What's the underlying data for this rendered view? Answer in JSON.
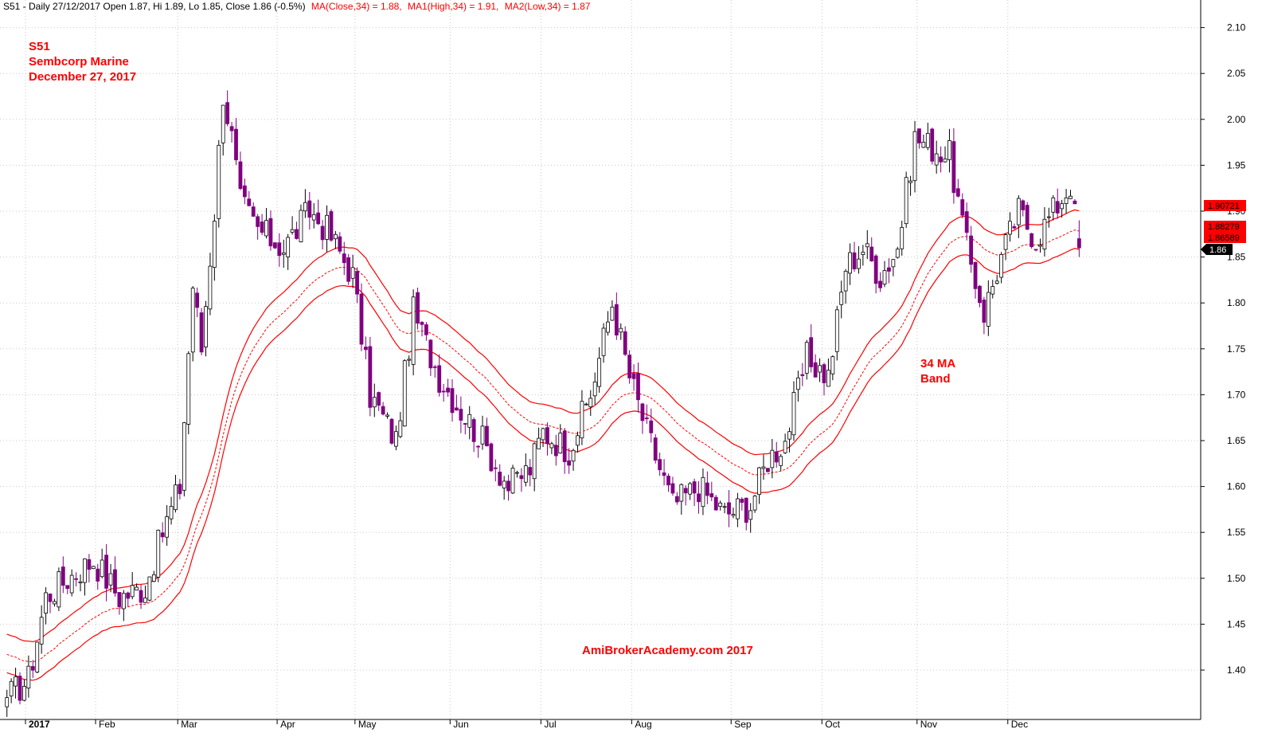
{
  "header": {
    "symbol_line": "S51 - Daily 27/12/2017 Open 1.87, Hi 1.89, Lo 1.85, Close 1.86 (-0.5%)",
    "ma_label": "MA(Close,34) = 1.88,",
    "ma1_label": "MA1(High,34) = 1.91,",
    "ma2_label": "MA2(Low,34) = 1.87"
  },
  "annotations": {
    "ticker": "S51",
    "company": "Sembcorp Marine",
    "date": "December 27, 2017",
    "band_line1": "34 MA",
    "band_line2": "Band",
    "watermark": "AmiBrokerAcademy.com   2017"
  },
  "price_badges": {
    "ma_high": "1.90721",
    "ma_close": "1.88279",
    "ma_low": "1.86589",
    "last_close": "1.86"
  },
  "colors": {
    "up_candle": "#ffffff",
    "down_candle": "#800080",
    "ma_line": "#ff0000",
    "annotation": "#ff0000",
    "badge_bg": "#ff0000",
    "last_badge_bg": "#000000"
  },
  "chart_data": {
    "type": "candlestick",
    "ylim": [
      1.35,
      2.12
    ],
    "y_ticks": [
      "1.40",
      "1.45",
      "1.50",
      "1.55",
      "1.60",
      "1.65",
      "1.70",
      "1.75",
      "1.80",
      "1.85",
      "1.90",
      "1.95",
      "2.00",
      "2.05",
      "2.10"
    ],
    "x_ticks": [
      "2017",
      "Feb",
      "Mar",
      "Apr",
      "May",
      "Jun",
      "Jul",
      "Aug",
      "Sep",
      "Oct",
      "Nov",
      "Dec"
    ],
    "month_bar_index": [
      0,
      21,
      40,
      63,
      81,
      103,
      124,
      145,
      168,
      189,
      211,
      232
    ],
    "bars": 249,
    "anchors": [
      [
        0,
        1.37
      ],
      [
        5,
        1.39
      ],
      [
        9,
        1.48
      ],
      [
        14,
        1.5
      ],
      [
        20,
        1.52
      ],
      [
        26,
        1.48
      ],
      [
        32,
        1.49
      ],
      [
        36,
        1.55
      ],
      [
        40,
        1.6
      ],
      [
        43,
        1.82
      ],
      [
        45,
        1.75
      ],
      [
        48,
        1.9
      ],
      [
        50,
        2.03
      ],
      [
        52,
        1.98
      ],
      [
        54,
        1.91
      ],
      [
        58,
        1.88
      ],
      [
        64,
        1.86
      ],
      [
        70,
        1.9
      ],
      [
        74,
        1.88
      ],
      [
        80,
        1.83
      ],
      [
        84,
        1.7
      ],
      [
        90,
        1.65
      ],
      [
        94,
        1.79
      ],
      [
        100,
        1.72
      ],
      [
        104,
        1.69
      ],
      [
        110,
        1.65
      ],
      [
        116,
        1.6
      ],
      [
        121,
        1.62
      ],
      [
        124,
        1.66
      ],
      [
        130,
        1.64
      ],
      [
        135,
        1.7
      ],
      [
        140,
        1.8
      ],
      [
        144,
        1.72
      ],
      [
        148,
        1.66
      ],
      [
        154,
        1.58
      ],
      [
        160,
        1.6
      ],
      [
        166,
        1.57
      ],
      [
        172,
        1.58
      ],
      [
        176,
        1.63
      ],
      [
        180,
        1.65
      ],
      [
        185,
        1.74
      ],
      [
        190,
        1.72
      ],
      [
        194,
        1.84
      ],
      [
        198,
        1.86
      ],
      [
        202,
        1.83
      ],
      [
        206,
        1.86
      ],
      [
        210,
        1.98
      ],
      [
        214,
        1.97
      ],
      [
        218,
        1.96
      ],
      [
        222,
        1.86
      ],
      [
        226,
        1.79
      ],
      [
        230,
        1.85
      ],
      [
        234,
        1.9
      ],
      [
        238,
        1.87
      ],
      [
        242,
        1.9
      ],
      [
        246,
        1.93
      ],
      [
        248,
        1.86
      ]
    ],
    "ma_close_initial": 1.42,
    "ma_high_offset": 0.022,
    "ma_low_offset": -0.02,
    "last": {
      "open": 1.87,
      "high": 1.89,
      "low": 1.85,
      "close": 1.86
    }
  }
}
